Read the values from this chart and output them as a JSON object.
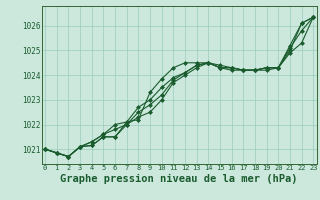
{
  "bg_color": "#cce8dd",
  "grid_color": "#99ccbb",
  "line_color": "#1a5c2e",
  "marker_color": "#1a5c2e",
  "xlabel": "Graphe pression niveau de la mer (hPa)",
  "xlabel_fontsize": 7.5,
  "xlim": [
    -0.3,
    23.3
  ],
  "ylim": [
    1020.4,
    1026.8
  ],
  "yticks": [
    1021,
    1022,
    1023,
    1024,
    1025,
    1026
  ],
  "xticks": [
    0,
    1,
    2,
    3,
    4,
    5,
    6,
    7,
    8,
    9,
    10,
    11,
    12,
    13,
    14,
    15,
    16,
    17,
    18,
    19,
    20,
    21,
    22,
    23
  ],
  "series": [
    [
      1021.0,
      1020.85,
      1020.7,
      1021.1,
      1021.15,
      1021.5,
      1021.5,
      1022.1,
      1022.2,
      1023.3,
      1023.85,
      1024.3,
      1024.5,
      1024.5,
      1024.5,
      1024.3,
      1024.3,
      1024.2,
      1024.2,
      1024.3,
      1024.3,
      1025.0,
      1026.1,
      1026.35
    ],
    [
      1021.0,
      1020.85,
      1020.7,
      1021.1,
      1021.3,
      1021.6,
      1022.0,
      1022.1,
      1022.7,
      1023.0,
      1023.5,
      1023.9,
      1024.1,
      1024.4,
      1024.5,
      1024.4,
      1024.3,
      1024.2,
      1024.2,
      1024.3,
      1024.3,
      1025.2,
      1026.1,
      1026.35
    ],
    [
      1021.0,
      1020.85,
      1020.7,
      1021.1,
      1021.15,
      1021.5,
      1021.5,
      1022.0,
      1022.3,
      1022.5,
      1023.0,
      1023.7,
      1024.0,
      1024.3,
      1024.5,
      1024.3,
      1024.2,
      1024.2,
      1024.2,
      1024.2,
      1024.3,
      1024.9,
      1025.3,
      1026.35
    ],
    [
      1021.0,
      1020.85,
      1020.7,
      1021.1,
      1021.3,
      1021.6,
      1021.8,
      1022.0,
      1022.5,
      1022.8,
      1023.2,
      1023.8,
      1024.1,
      1024.4,
      1024.5,
      1024.3,
      1024.3,
      1024.2,
      1024.2,
      1024.3,
      1024.3,
      1025.1,
      1025.8,
      1026.35
    ]
  ]
}
